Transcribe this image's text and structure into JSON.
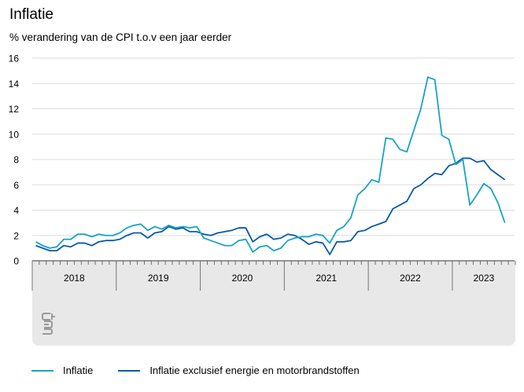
{
  "chart_data": {
    "type": "line",
    "title": "Inflatie",
    "subtitle": "% verandering van de CPI t.o.v een jaar eerder",
    "ylim": [
      0,
      16
    ],
    "yticks": [
      0,
      2,
      4,
      6,
      8,
      10,
      12,
      14,
      16
    ],
    "grid": true,
    "legend_position": "bottom",
    "year_labels": [
      "2018",
      "2019",
      "2020",
      "2021",
      "2022",
      "2023"
    ],
    "x_start": "2018-01",
    "series": [
      {
        "name": "Inflatie",
        "color": "#18a3c7",
        "values": [
          1.5,
          1.2,
          1.0,
          1.1,
          1.7,
          1.7,
          2.1,
          2.1,
          1.9,
          2.1,
          2.0,
          2.0,
          2.2,
          2.6,
          2.8,
          2.9,
          2.4,
          2.7,
          2.5,
          2.8,
          2.6,
          2.7,
          2.6,
          2.7,
          1.8,
          1.6,
          1.4,
          1.2,
          1.2,
          1.6,
          1.7,
          0.7,
          1.1,
          1.2,
          0.8,
          1.0,
          1.6,
          1.8,
          1.9,
          1.9,
          2.1,
          2.0,
          1.4,
          2.4,
          2.7,
          3.4,
          5.2,
          5.7,
          6.4,
          6.2,
          9.7,
          9.6,
          8.8,
          8.6,
          10.3,
          12.0,
          14.5,
          14.3,
          9.9,
          9.6,
          7.6,
          8.0,
          4.4,
          5.2,
          6.1,
          5.7,
          4.6,
          3.0
        ],
        "marker": "line"
      },
      {
        "name": "Inflatie exclusief energie en motorbrandstoffen",
        "color": "#0a5aa8",
        "values": [
          1.2,
          1.0,
          0.8,
          0.8,
          1.2,
          1.1,
          1.4,
          1.4,
          1.2,
          1.5,
          1.6,
          1.6,
          1.7,
          2.0,
          2.2,
          2.2,
          1.8,
          2.2,
          2.3,
          2.7,
          2.5,
          2.6,
          2.3,
          2.3,
          2.1,
          2.0,
          2.2,
          2.3,
          2.4,
          2.6,
          2.6,
          1.5,
          1.9,
          2.1,
          1.7,
          1.8,
          2.1,
          2.0,
          1.7,
          1.3,
          1.5,
          1.4,
          0.5,
          1.5,
          1.5,
          1.6,
          2.3,
          2.4,
          2.7,
          2.9,
          3.1,
          4.1,
          4.4,
          4.7,
          5.7,
          6.0,
          6.5,
          6.9,
          6.8,
          7.5,
          7.7,
          8.1,
          8.1,
          7.8,
          7.9,
          7.2,
          6.8,
          6.4
        ]
      }
    ]
  },
  "brand": {
    "logo_icon": "cbs-logo"
  }
}
